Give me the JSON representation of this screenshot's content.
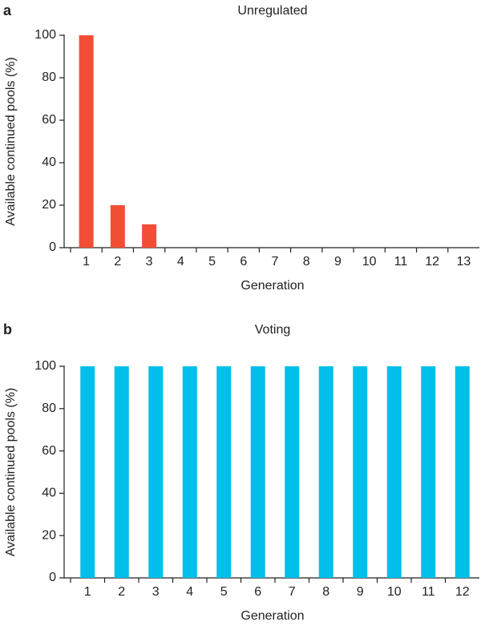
{
  "chart_data": [
    {
      "type": "bar",
      "panel_label": "a",
      "title": "Unregulated",
      "xlabel": "Generation",
      "ylabel": "Available continued pools (%)",
      "categories": [
        "1",
        "2",
        "3",
        "4",
        "5",
        "6",
        "7",
        "8",
        "9",
        "10",
        "11",
        "12",
        "13"
      ],
      "values": [
        100,
        20,
        11,
        0,
        0,
        0,
        0,
        0,
        0,
        0,
        0,
        0,
        0
      ],
      "color": "#f24e36",
      "ylim": [
        0,
        100
      ],
      "yticks": [
        0,
        20,
        40,
        60,
        80,
        100
      ]
    },
    {
      "type": "bar",
      "panel_label": "b",
      "title": "Voting",
      "xlabel": "Generation",
      "ylabel": "Available continued pools (%)",
      "categories": [
        "1",
        "2",
        "3",
        "4",
        "5",
        "6",
        "7",
        "8",
        "9",
        "10",
        "11",
        "12"
      ],
      "values": [
        100,
        100,
        100,
        100,
        100,
        100,
        100,
        100,
        100,
        100,
        100,
        100
      ],
      "color": "#00bfea",
      "ylim": [
        0,
        100
      ],
      "yticks": [
        0,
        20,
        40,
        60,
        80,
        100
      ]
    }
  ]
}
